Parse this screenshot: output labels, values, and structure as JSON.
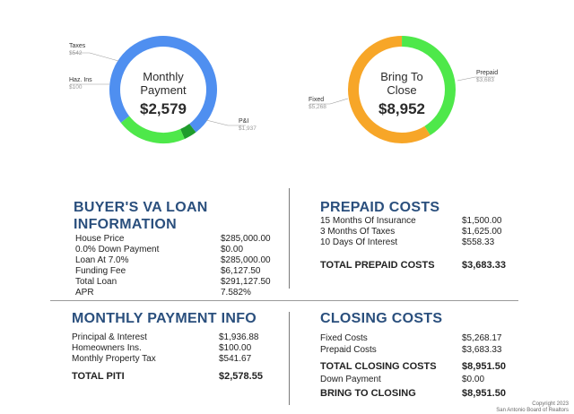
{
  "monthly_payment_chart": {
    "title_line1": "Monthly",
    "title_line2": "Payment",
    "total": "$2,579",
    "slices": [
      {
        "name": "P&I",
        "value": 1937,
        "label": "$1,937",
        "color": "#4f8ff0"
      },
      {
        "name": "Haz. Ins",
        "value": 100,
        "label": "$100",
        "color": "#1f9c2c"
      },
      {
        "name": "Taxes",
        "value": 542,
        "label": "$542",
        "color": "#4ee84a"
      }
    ]
  },
  "bring_to_close_chart": {
    "title_line1": "Bring To",
    "title_line2": "Close",
    "total": "$8,952",
    "slices": [
      {
        "name": "Fixed",
        "value": 5268,
        "label": "$5,268",
        "color": "#f7a628"
      },
      {
        "name": "Prepaid",
        "value": 3683,
        "label": "$3,683",
        "color": "#4ee84a"
      }
    ]
  },
  "va_loan": {
    "heading_line1": "BUYER'S VA LOAN",
    "heading_line2": "INFORMATION",
    "rows": [
      {
        "label": "House Price",
        "value": "$285,000.00"
      },
      {
        "label": "0.0% Down Payment",
        "value": "$0.00"
      },
      {
        "label": "Loan At 7.0%",
        "value": "$285,000.00"
      },
      {
        "label": "Funding Fee",
        "value": "$6,127.50"
      },
      {
        "label": "Total Loan",
        "value": "$291,127.50"
      },
      {
        "label": "APR",
        "value": "7.582%"
      }
    ]
  },
  "prepaid": {
    "heading": "PREPAID COSTS",
    "rows": [
      {
        "label": "15 Months Of Insurance",
        "value": "$1,500.00"
      },
      {
        "label": "3 Months Of Taxes",
        "value": "$1,625.00"
      },
      {
        "label": "10 Days Of Interest",
        "value": "$558.33"
      }
    ],
    "total_label": "TOTAL PREPAID COSTS",
    "total_value": "$3,683.33"
  },
  "monthly_info": {
    "heading": "MONTHLY PAYMENT INFO",
    "rows": [
      {
        "label": "Principal & Interest",
        "value": "$1,936.88"
      },
      {
        "label": "Homeowners Ins.",
        "value": "$100.00"
      },
      {
        "label": "Monthly Property Tax",
        "value": "$541.67"
      }
    ],
    "total_label": "TOTAL PITI",
    "total_value": "$2,578.55"
  },
  "closing": {
    "heading": "CLOSING COSTS",
    "rows": [
      {
        "label": "Fixed Costs",
        "value": "$5,268.17"
      },
      {
        "label": "Prepaid Costs",
        "value": "$3,683.33"
      }
    ],
    "total_label": "TOTAL CLOSING COSTS",
    "total_value": "$8,951.50",
    "down_label": "Down Payment",
    "down_value": "$0.00",
    "bring_label": "BRING TO CLOSING",
    "bring_value": "$8,951.50"
  },
  "copyright": {
    "line1": "Copyright 2023",
    "line2": "San Antonio Board of Realtors"
  }
}
